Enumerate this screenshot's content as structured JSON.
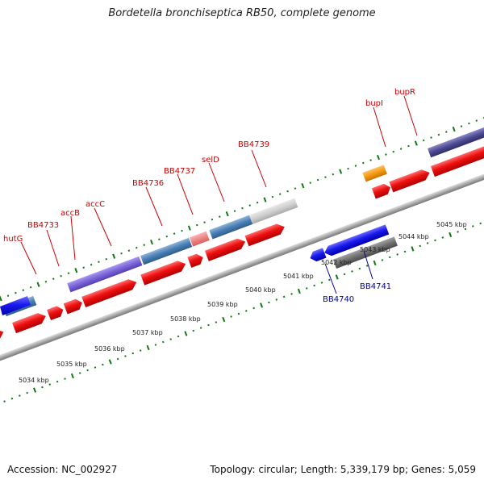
{
  "title": "Bordetella bronchiseptica RB50, complete genome",
  "footer": {
    "accession": "Accession: NC_002927",
    "stats": "Topology: circular; Length: 5,339,179 bp; Genes: 5,059"
  },
  "colors": {
    "forward": "#ee1111",
    "reverse": "#1a1aee",
    "tick": "#117711",
    "label_fwd": "#cc0000",
    "label_rev": "#0000aa"
  },
  "kbp_labels": [
    "5034 kbp",
    "5035 kbp",
    "5036 kbp",
    "5037 kbp",
    "5038 kbp",
    "5039 kbp",
    "5040 kbp",
    "5041 kbp",
    "5042 kbp",
    "5043 kbp",
    "5044 kbp",
    "5045 kbp"
  ],
  "upper_labels": [
    "hutG",
    "BB4733",
    "accB",
    "accC",
    "BB4736",
    "BB4737",
    "selD",
    "BB4739",
    "bupI",
    "bupR"
  ],
  "lower_labels": [
    "BB4740",
    "BB4741"
  ]
}
